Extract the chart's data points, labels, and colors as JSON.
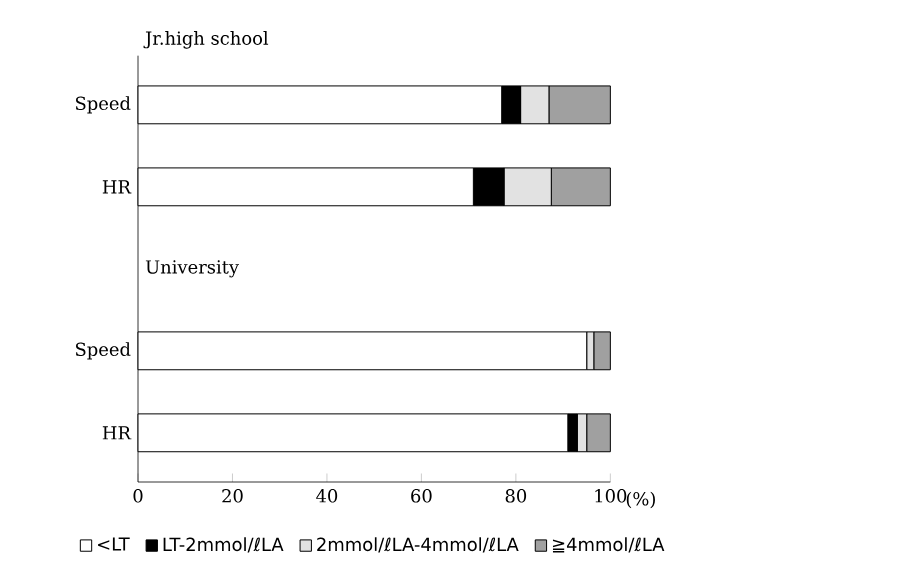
{
  "chart_data": {
    "type": "bar",
    "orientation": "horizontal",
    "stacked": true,
    "categories": [
      "Speed",
      "HR",
      null,
      "Speed",
      "HR"
    ],
    "series": [
      {
        "name": "<LT",
        "color": "#ffffff",
        "values": [
          77,
          71,
          null,
          95,
          91
        ]
      },
      {
        "name": "LT-2mmol/ℓLA",
        "color": "#000000",
        "values": [
          4,
          6.5,
          null,
          0,
          2
        ]
      },
      {
        "name": "2mmol/ℓLA-4mmol/ℓLA",
        "color": "#e2e2e2",
        "values": [
          6,
          10,
          null,
          1.5,
          2
        ]
      },
      {
        "name": "≧4mmol/ℓLA",
        "color": "#a0a0a0",
        "values": [
          13,
          12.5,
          null,
          3.5,
          5
        ]
      }
    ],
    "xlim": [
      0,
      100
    ],
    "xticks": [
      0,
      20,
      40,
      60,
      80,
      100
    ],
    "xlabel": "(%)",
    "annotations": [
      "Jr.high school",
      "University"
    ],
    "legend": "bottom",
    "grid": false
  }
}
